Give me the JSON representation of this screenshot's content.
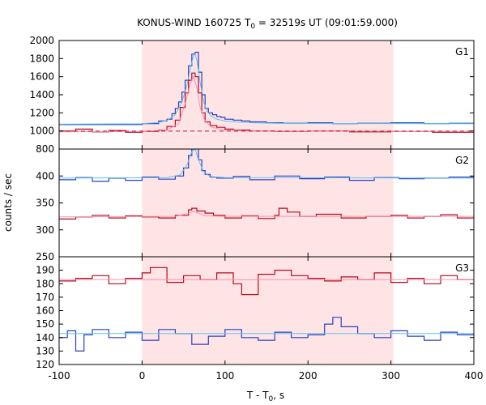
{
  "chart_data": {
    "type": "line",
    "title_main": "KONUS-WIND 160725 T",
    "title_sub": "0",
    "title_rest": " = 32519s UT (09:01:59.000)",
    "xlabel_main": "T - T",
    "xlabel_sub": "0",
    "xlabel_rest": ", s",
    "ylabel": "counts / sec",
    "xlim": [
      -100,
      400
    ],
    "x_ticks": [
      "-100",
      "0",
      "100",
      "200",
      "300",
      "400"
    ],
    "x_tick_values": [
      -100,
      0,
      100,
      200,
      300,
      400
    ],
    "shaded_interval": [
      0,
      303
    ],
    "colors": {
      "shade": "#ffe4e6",
      "blue_series": "#2a3fbf",
      "red_series": "#b00a1e",
      "cyan_fit": "#5fc3ee",
      "pink_fit": "#ff8fb0",
      "red_background": "#c4102a"
    },
    "panels": [
      {
        "label": "G1",
        "ylim": [
          800,
          2000
        ],
        "y_ticks": [
          800,
          1000,
          1200,
          1400,
          1600,
          1800,
          2000
        ],
        "y_tick_labels": [
          "800",
          "1000",
          "1200",
          "1400",
          "1600",
          "1800",
          "2000"
        ],
        "series": [
          {
            "color_key": "blue_series",
            "style": "step",
            "x": [
              -100,
              0,
              20,
              30,
              36,
              40,
              44,
              48,
              52,
              56,
              60,
              64,
              68,
              72,
              76,
              80,
              85,
              90,
              95,
              100,
              110,
              120,
              130,
              150,
              170,
              200,
              230,
              260,
              300,
              340,
              370,
              400
            ],
            "y": [
              1070,
              1080,
              1110,
              1130,
              1190,
              1250,
              1320,
              1430,
              1560,
              1720,
              1850,
              1870,
              1650,
              1400,
              1250,
              1200,
              1180,
              1160,
              1150,
              1130,
              1120,
              1110,
              1100,
              1090,
              1085,
              1090,
              1080,
              1085,
              1090,
              1080,
              1085,
              1085
            ]
          },
          {
            "color_key": "cyan_fit",
            "style": "line",
            "x": [
              -100,
              0,
              20,
              30,
              40,
              48,
              54,
              58,
              62,
              64,
              66,
              70,
              74,
              78,
              84,
              90,
              100,
              120,
              140,
              170,
              400
            ],
            "y": [
              1075,
              1080,
              1095,
              1115,
              1180,
              1320,
              1500,
              1680,
              1830,
              1850,
              1780,
              1540,
              1330,
              1220,
              1160,
              1130,
              1110,
              1095,
              1088,
              1082,
              1080
            ]
          },
          {
            "color_key": "red_series",
            "style": "step",
            "x": [
              -100,
              -80,
              -60,
              -40,
              -20,
              0,
              20,
              30,
              40,
              46,
              52,
              56,
              60,
              64,
              68,
              72,
              76,
              82,
              90,
              100,
              110,
              130,
              160,
              200,
              250,
              300,
              350,
              400
            ],
            "y": [
              1000,
              1020,
              990,
              1005,
              985,
              995,
              1010,
              1050,
              1120,
              1260,
              1420,
              1560,
              1640,
              1600,
              1420,
              1200,
              1100,
              1060,
              1040,
              1020,
              1010,
              1000,
              995,
              1000,
              990,
              995,
              985,
              990
            ]
          },
          {
            "color_key": "pink_fit",
            "style": "line",
            "x": [
              -100,
              0,
              30,
              44,
              52,
              58,
              62,
              66,
              70,
              76,
              84,
              100,
              130,
              400
            ],
            "y": [
              990,
              995,
              1010,
              1080,
              1300,
              1520,
              1600,
              1480,
              1260,
              1110,
              1040,
              1010,
              1000,
              995
            ]
          },
          {
            "color_key": "red_background",
            "style": "dashed",
            "x": [
              -100,
              400
            ],
            "y": [
              998,
              998
            ]
          }
        ]
      },
      {
        "label": "G2",
        "ylim": [
          250,
          450
        ],
        "y_ticks": [
          250,
          300,
          350,
          400
        ],
        "y_tick_labels": [
          "250",
          "300",
          "350",
          "400"
        ],
        "series": [
          {
            "color_key": "blue_series",
            "style": "step",
            "x": [
              -100,
              -80,
              -60,
              -40,
              -20,
              0,
              20,
              40,
              50,
              56,
              60,
              64,
              68,
              72,
              76,
              82,
              90,
              110,
              130,
              160,
              190,
              220,
              250,
              280,
              310,
              340,
              370,
              400
            ],
            "y": [
              393,
              397,
              390,
              396,
              392,
              398,
              394,
              400,
              415,
              438,
              450,
              455,
              430,
              410,
              403,
              398,
              396,
              399,
              393,
              400,
              395,
              398,
              392,
              397,
              395,
              396,
              398,
              400
            ]
          },
          {
            "color_key": "cyan_fit",
            "style": "line",
            "x": [
              -100,
              30,
              46,
              54,
              60,
              64,
              68,
              74,
              82,
              100,
              400
            ],
            "y": [
              396,
              397,
              402,
              420,
              445,
              450,
              430,
              408,
              399,
              397,
              396
            ]
          },
          {
            "color_key": "red_series",
            "style": "step",
            "x": [
              -100,
              -80,
              -60,
              -40,
              -20,
              0,
              20,
              40,
              56,
              60,
              66,
              76,
              86,
              100,
              120,
              140,
              160,
              165,
              175,
              190,
              210,
              240,
              270,
              300,
              320,
              340,
              360,
              380,
              400
            ],
            "y": [
              320,
              324,
              327,
              322,
              326,
              324,
              322,
              327,
              337,
              340,
              335,
              331,
              327,
              322,
              326,
              321,
              327,
              340,
              333,
              325,
              329,
              322,
              325,
              327,
              322,
              325,
              328,
              322,
              325
            ]
          },
          {
            "color_key": "pink_fit",
            "style": "line",
            "x": [
              -100,
              40,
              54,
              62,
              68,
              76,
              100,
              400
            ],
            "y": [
              324,
              325,
              330,
              334,
              331,
              326,
              325,
              325
            ]
          }
        ]
      },
      {
        "label": "G3",
        "ylim": [
          120,
          200
        ],
        "y_ticks": [
          120,
          130,
          140,
          150,
          160,
          170,
          180,
          190
        ],
        "y_tick_labels": [
          "120",
          "130",
          "140",
          "150",
          "160",
          "170",
          "180",
          "190"
        ],
        "series": [
          {
            "color_key": "red_series",
            "style": "step",
            "x": [
              -100,
              -80,
              -60,
              -40,
              -20,
              0,
              10,
              30,
              50,
              70,
              90,
              110,
              120,
              140,
              160,
              180,
              200,
              220,
              240,
              260,
              280,
              300,
              320,
              340,
              360,
              380,
              400
            ],
            "y": [
              182,
              184,
              186,
              180,
              184,
              188,
              192,
              181,
              186,
              183,
              188,
              180,
              172,
              187,
              190,
              186,
              184,
              182,
              185,
              183,
              188,
              181,
              184,
              180,
              186,
              183,
              182
            ]
          },
          {
            "color_key": "pink_fit",
            "style": "line",
            "x": [
              -100,
              400
            ],
            "y": [
              183,
              183
            ]
          },
          {
            "color_key": "blue_series",
            "style": "step",
            "x": [
              -100,
              -90,
              -80,
              -70,
              -60,
              -40,
              -20,
              0,
              20,
              40,
              60,
              80,
              100,
              120,
              140,
              160,
              180,
              200,
              220,
              230,
              240,
              260,
              280,
              300,
              320,
              340,
              360,
              380,
              400
            ],
            "y": [
              140,
              145,
              130,
              142,
              146,
              140,
              144,
              138,
              146,
              143,
              135,
              141,
              146,
              140,
              138,
              144,
              140,
              142,
              150,
              155,
              148,
              143,
              140,
              145,
              141,
              138,
              144,
              142,
              141
            ]
          },
          {
            "color_key": "cyan_fit",
            "style": "line",
            "x": [
              -100,
              400
            ],
            "y": [
              143,
              143
            ]
          }
        ]
      }
    ]
  }
}
